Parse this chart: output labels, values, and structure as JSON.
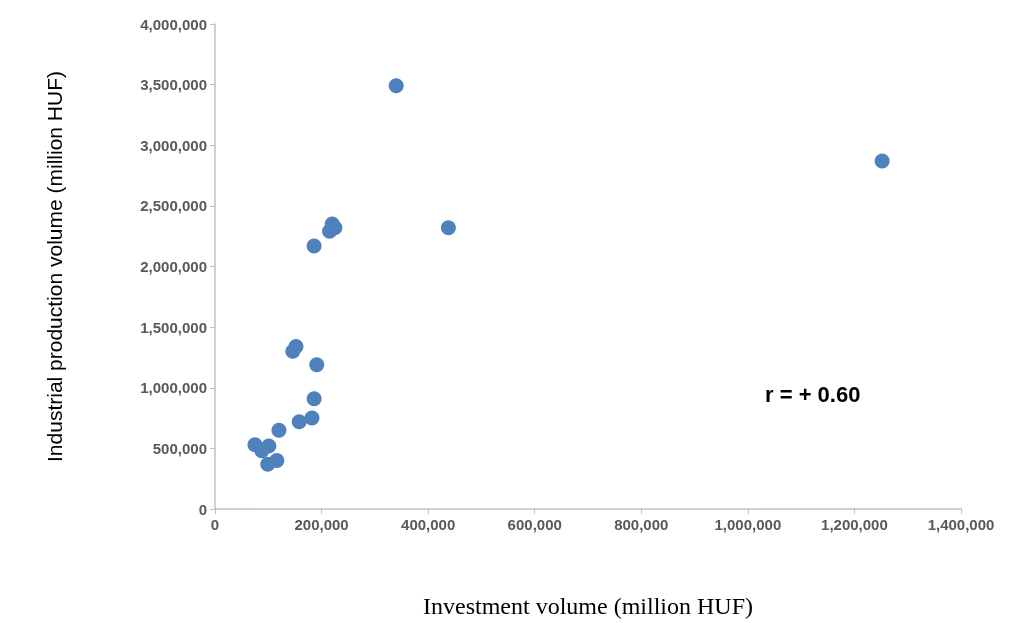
{
  "chart_data": {
    "type": "scatter",
    "xlabel": "Investment volume (million HUF)",
    "ylabel": "Industrial production volume (million HUF)",
    "annotations": [
      "r = + 0.60"
    ],
    "marker": "circle",
    "grid": false,
    "xlim": [
      0,
      1400000
    ],
    "xticks": [
      0,
      {
        "value": 200000,
        "label": "200,000"
      },
      {
        "value": 400000,
        "label": "400,000"
      },
      {
        "value": 600000,
        "label": "600,000"
      },
      {
        "value": 800000,
        "label": "800,000"
      },
      {
        "value": 1000000,
        "label": "1,000,000"
      },
      {
        "value": 1200000,
        "label": "1,200,000"
      },
      {
        "value": 1400000,
        "label": "1,400,000"
      }
    ],
    "ylim": [
      0,
      4000000
    ],
    "yticks": [
      0,
      {
        "value": 500000,
        "label": "500,000"
      },
      {
        "value": 1000000,
        "label": "1,000,000"
      },
      {
        "value": 1500000,
        "label": "1,500,000"
      },
      {
        "value": 2000000,
        "label": "2,000,000"
      },
      {
        "value": 2500000,
        "label": "2,500,000"
      },
      {
        "value": 3000000,
        "label": "3,000,000"
      },
      {
        "value": 3500000,
        "label": "3,500,000"
      },
      {
        "value": 4000000,
        "label": "4,000,000"
      }
    ],
    "series": [
      {
        "color": "#4f81bd",
        "x": [
          340000,
          1252000,
          220000,
          225000,
          215000,
          438000,
          186000,
          152000,
          146000,
          191000,
          186000,
          182000,
          158000,
          120000,
          75000,
          101000,
          88000,
          99000,
          116000
        ],
        "values": [
          3490000,
          2870000,
          2350000,
          2320000,
          2290000,
          2320000,
          2170000,
          1340000,
          1300000,
          1190000,
          910000,
          750000,
          720000,
          650000,
          530000,
          520000,
          480000,
          370000,
          400000
        ]
      }
    ]
  }
}
